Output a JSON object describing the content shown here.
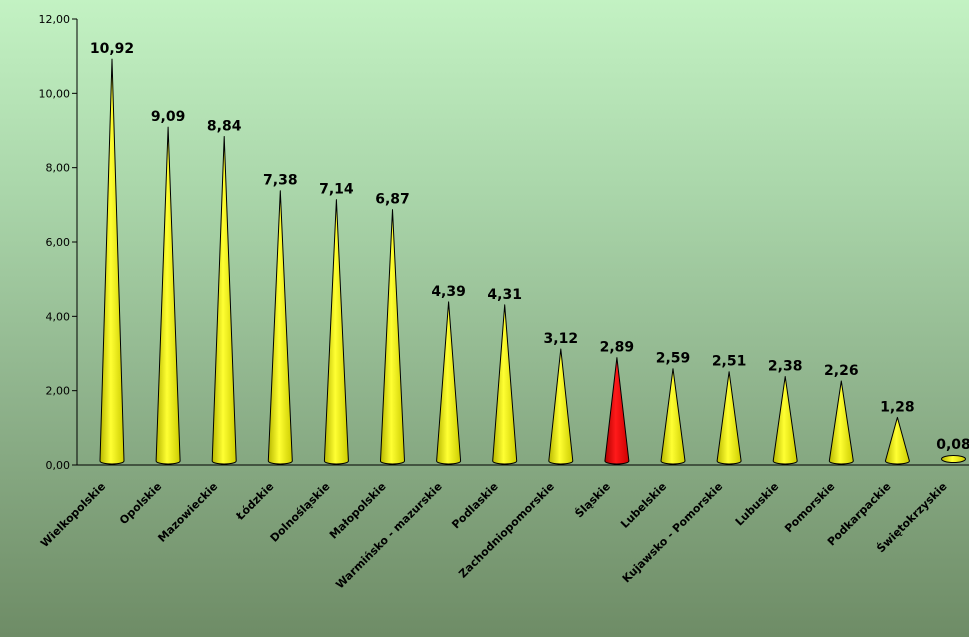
{
  "chart_data": {
    "type": "bar",
    "bar_shape": "cone",
    "categories": [
      "Wielkopolskie",
      "Opolskie",
      "Mazowieckie",
      "Łódzkie",
      "Dolnośląskie",
      "Małopolskie",
      "Warmińsko - mazurskie",
      "Podlaskie",
      "Zachodniopomorskie",
      "Śląskie",
      "Lubelskie",
      "Kujawsko - Pomorskie",
      "Lubuskie",
      "Pomorskie",
      "Podkarpackie",
      "Świętokrzyskie"
    ],
    "values": [
      10.92,
      9.09,
      8.84,
      7.38,
      7.14,
      6.87,
      4.39,
      4.31,
      3.12,
      2.89,
      2.59,
      2.51,
      2.38,
      2.26,
      1.28,
      0.08
    ],
    "data_labels": [
      "10,92",
      "9,09",
      "8,84",
      "7,38",
      "7,14",
      "6,87",
      "4,39",
      "4,31",
      "3,12",
      "2,89",
      "2,59",
      "2,51",
      "2,38",
      "2,26",
      "1,28",
      "0,08"
    ],
    "highlight_index": 9,
    "colors": {
      "default": "#ffff00",
      "highlight": "#ff0000",
      "stroke": "#000000"
    },
    "y_ticks": [
      "0,00",
      "2,00",
      "4,00",
      "6,00",
      "8,00",
      "10,00",
      "12,00"
    ],
    "ylim": [
      0,
      12
    ],
    "title": "",
    "xlabel": "",
    "ylabel": "",
    "grid": false,
    "legend": "none"
  }
}
